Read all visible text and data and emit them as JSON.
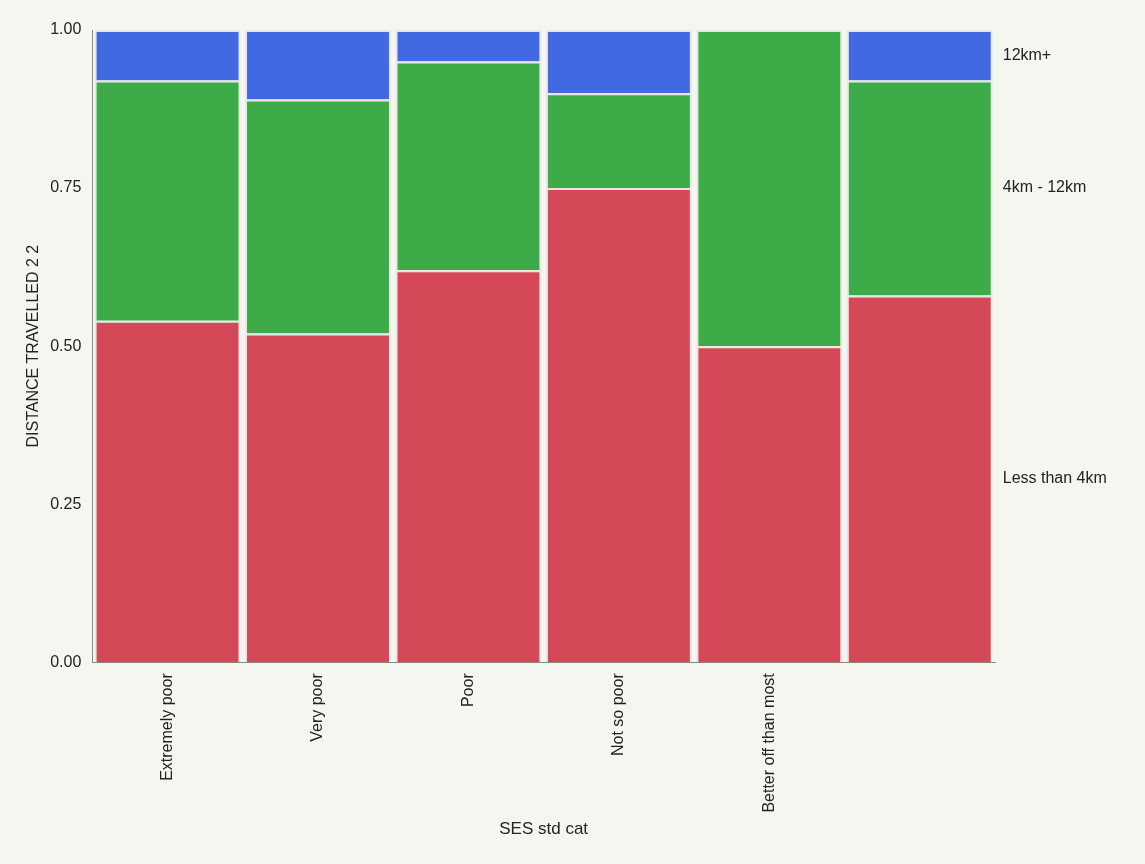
{
  "chart_data": {
    "type": "bar",
    "stacked": true,
    "xlabel": "SES std cat",
    "ylabel": "DISTANCE TRAVELLED 2 2",
    "categories": [
      "Extremely poor",
      "Very poor",
      "Poor",
      "Not so poor",
      "Better off than most",
      null
    ],
    "series": [
      {
        "name": "Less than 4km",
        "color": "#d44858",
        "values": [
          0.54,
          0.52,
          0.62,
          0.75,
          0.5,
          0.58
        ]
      },
      {
        "name": "4km - 12km",
        "color": "#3dab47",
        "values": [
          0.38,
          0.37,
          0.33,
          0.15,
          0.5,
          0.34
        ]
      },
      {
        "name": "12km+",
        "color": "#4169e1",
        "values": [
          0.08,
          0.11,
          0.05,
          0.1,
          0.0,
          0.08
        ]
      }
    ],
    "ylim": [
      0,
      1
    ],
    "yticks": [
      {
        "value": 0,
        "label": "0.00"
      },
      {
        "value": 0.25,
        "label": "0.25"
      },
      {
        "value": 0.5,
        "label": "0.50"
      },
      {
        "value": 0.75,
        "label": "0.75"
      },
      {
        "value": 1,
        "label": "1.00"
      }
    ],
    "grid": false,
    "legend": "right"
  }
}
